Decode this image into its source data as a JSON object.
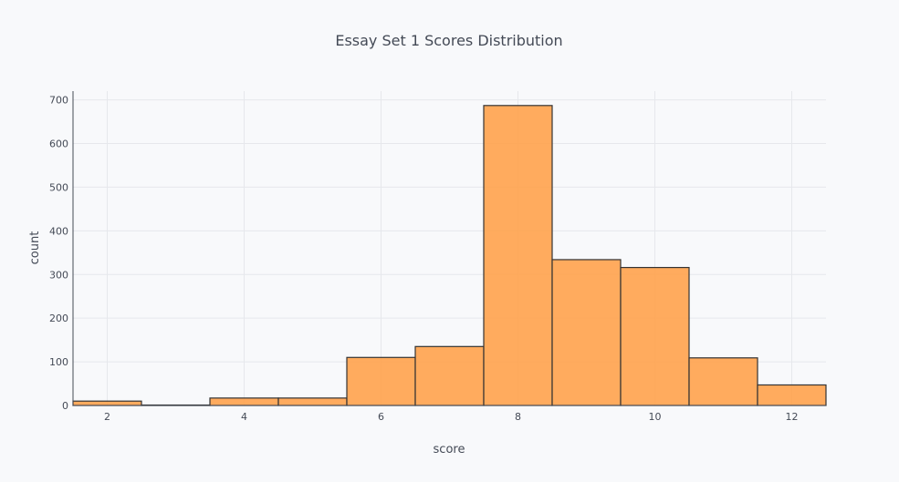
{
  "chart_data": {
    "type": "bar",
    "title": "Essay Set 1 Scores Distribution",
    "xlabel": "score",
    "ylabel": "count",
    "x": [
      2,
      3,
      4,
      5,
      6,
      7,
      8,
      9,
      10,
      11,
      12
    ],
    "values": [
      10,
      1,
      17,
      17,
      110,
      135,
      687,
      334,
      316,
      109,
      47
    ],
    "xlim": [
      1.5,
      12.5
    ],
    "ylim": [
      0,
      720
    ],
    "x_ticks": [
      2,
      4,
      6,
      8,
      10,
      12
    ],
    "y_ticks": [
      0,
      100,
      200,
      300,
      400,
      500,
      600,
      700
    ],
    "grid": true,
    "bar_color": "#ffa24d",
    "bar_outline": "#333333",
    "background": "#f8f9fb"
  }
}
